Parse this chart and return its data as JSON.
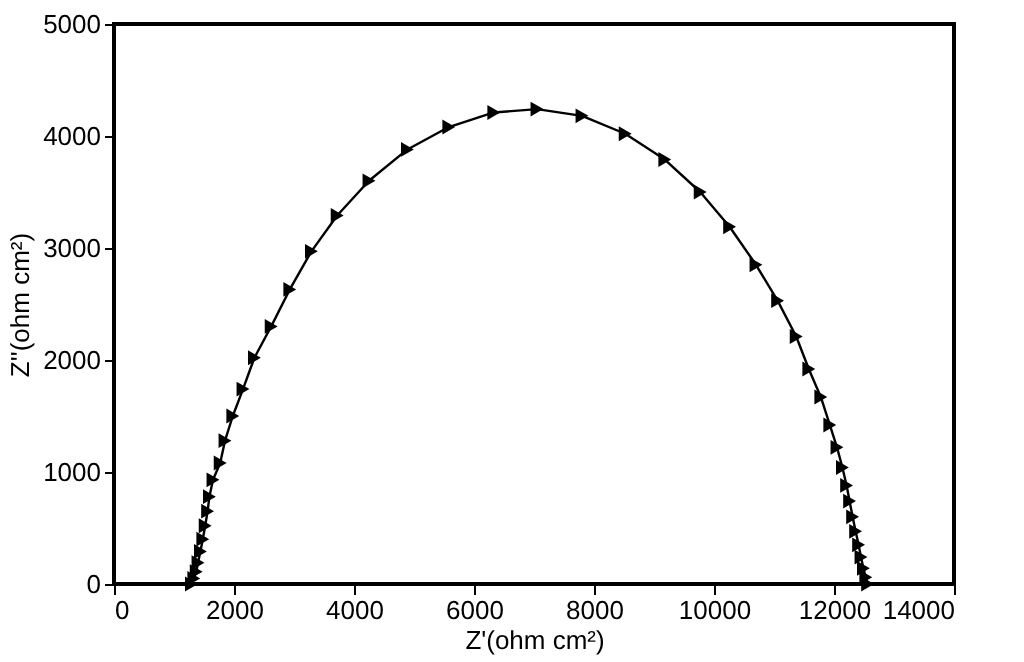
{
  "chart_data": {
    "type": "line",
    "xlabel": "Z'(ohm cm²)",
    "ylabel": "Z''(ohm cm²)",
    "marker": "triangle",
    "line_style": "solid",
    "grid": false,
    "xlim": [
      0,
      14000
    ],
    "xticks": [
      0,
      2000,
      4000,
      6000,
      8000,
      10000,
      12000,
      14000
    ],
    "ylim": [
      0,
      5000
    ],
    "yticks": [
      0,
      1000,
      2000,
      3000,
      4000,
      5000
    ],
    "series": [
      {
        "color": "#000000",
        "x": [
          1290,
          1330,
          1370,
          1400,
          1440,
          1480,
          1520,
          1560,
          1590,
          1650,
          1770,
          1850,
          1980,
          2150,
          2340,
          2620,
          2930,
          3290,
          3720,
          4250,
          4890,
          5580,
          6330,
          7050,
          7800,
          8520,
          9180,
          9770,
          10260,
          10700,
          11060,
          11370,
          11580,
          11780,
          11930,
          12050,
          12140,
          12210,
          12260,
          12310,
          12360,
          12410,
          12450,
          12490,
          12530,
          12560
        ],
        "values": [
          0,
          50,
          110,
          190,
          290,
          400,
          520,
          650,
          780,
          930,
          1080,
          1280,
          1500,
          1740,
          2020,
          2300,
          2630,
          2970,
          3290,
          3600,
          3880,
          4080,
          4210,
          4240,
          4180,
          4020,
          3790,
          3500,
          3190,
          2850,
          2530,
          2210,
          1920,
          1670,
          1420,
          1220,
          1040,
          880,
          740,
          600,
          470,
          350,
          240,
          140,
          60,
          0
        ]
      }
    ]
  }
}
